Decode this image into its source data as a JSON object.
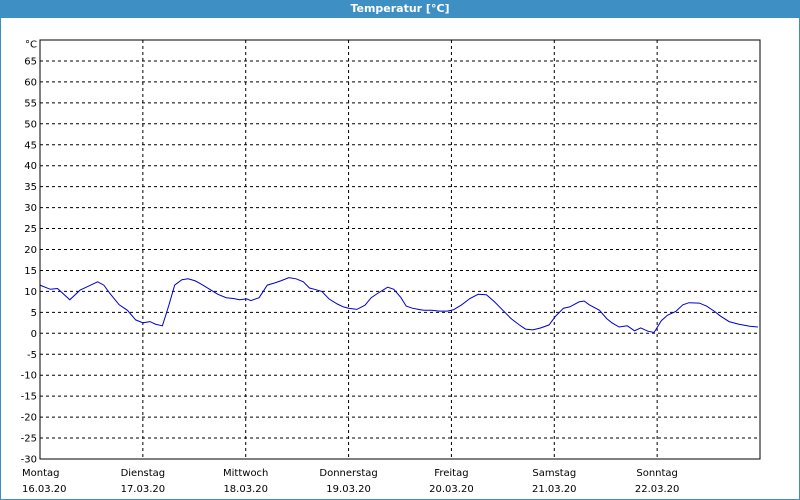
{
  "window": {
    "title": "Temperatur [°C]"
  },
  "chart_data": {
    "type": "line",
    "title": "Temperatur [°C]",
    "ylabel": "°C",
    "xlabel": "",
    "ylim": [
      -30,
      70
    ],
    "yticks": [
      65,
      60,
      55,
      50,
      45,
      40,
      35,
      30,
      25,
      20,
      15,
      10,
      5,
      0,
      -5,
      -10,
      -15,
      -20,
      -25,
      -30
    ],
    "x_range_days": [
      0,
      7
    ],
    "day_labels": [
      {
        "day": "Montag",
        "date": "16.03.20"
      },
      {
        "day": "Dienstag",
        "date": "17.03.20"
      },
      {
        "day": "Mittwoch",
        "date": "18.03.20"
      },
      {
        "day": "Donnerstag",
        "date": "19.03.20"
      },
      {
        "day": "Freitag",
        "date": "20.03.20"
      },
      {
        "day": "Samstag",
        "date": "21.03.20"
      },
      {
        "day": "Sonntag",
        "date": "22.03.20"
      }
    ],
    "grid": true,
    "grid_style": "dashed",
    "line_color": "#0000cc",
    "series": [
      {
        "x": [
          0.0,
          0.1,
          0.17,
          0.29,
          0.39,
          0.45,
          0.56,
          0.62,
          0.68,
          0.77,
          0.85,
          0.93,
          1.0,
          1.07,
          1.12,
          1.19,
          1.25,
          1.31,
          1.38,
          1.44,
          1.51,
          1.57,
          1.65,
          1.73,
          1.81,
          1.88,
          1.94,
          2.01,
          2.05,
          2.13,
          2.21,
          2.28,
          2.34,
          2.42,
          2.49,
          2.56,
          2.62,
          2.67,
          2.74,
          2.81,
          2.89,
          2.95,
          3.0,
          3.08,
          3.16,
          3.22,
          3.28,
          3.38,
          3.44,
          3.51,
          3.56,
          3.62,
          3.68,
          3.73,
          3.81,
          3.88,
          3.96,
          4.02,
          4.1,
          4.18,
          4.26,
          4.34,
          4.42,
          4.5,
          4.58,
          4.66,
          4.72,
          4.79,
          4.87,
          4.95,
          5.01,
          5.09,
          5.15,
          5.24,
          5.29,
          5.34,
          5.44,
          5.51,
          5.56,
          5.63,
          5.71,
          5.78,
          5.84,
          5.91,
          5.97,
          6.04,
          6.1,
          6.18,
          6.25,
          6.31,
          6.41,
          6.48,
          6.56,
          6.61,
          6.7,
          6.79,
          6.9,
          6.98
        ],
        "values": [
          11.5,
          10.5,
          10.7,
          8.0,
          10.3,
          11.0,
          12.3,
          11.5,
          9.5,
          6.8,
          5.5,
          3.2,
          2.5,
          2.8,
          2.2,
          1.8,
          6.5,
          11.5,
          12.8,
          13.0,
          12.5,
          11.7,
          10.5,
          9.3,
          8.5,
          8.3,
          8.0,
          8.2,
          7.8,
          8.5,
          11.5,
          12.0,
          12.5,
          13.3,
          13.0,
          12.3,
          10.8,
          10.5,
          10.0,
          8.2,
          7.0,
          6.3,
          6.0,
          5.7,
          6.7,
          8.5,
          9.5,
          11.0,
          10.5,
          8.5,
          6.5,
          6.0,
          5.7,
          5.5,
          5.5,
          5.3,
          5.3,
          5.6,
          6.8,
          8.3,
          9.3,
          9.2,
          7.5,
          5.5,
          3.5,
          2.0,
          1.0,
          0.8,
          1.3,
          2.0,
          4.0,
          6.0,
          6.3,
          7.5,
          7.7,
          6.8,
          5.5,
          3.5,
          2.5,
          1.5,
          1.8,
          0.6,
          1.3,
          0.5,
          0.2,
          3.0,
          4.3,
          5.2,
          6.8,
          7.3,
          7.2,
          6.5,
          5.2,
          4.2,
          2.8,
          2.2,
          1.7,
          1.5
        ]
      }
    ]
  }
}
